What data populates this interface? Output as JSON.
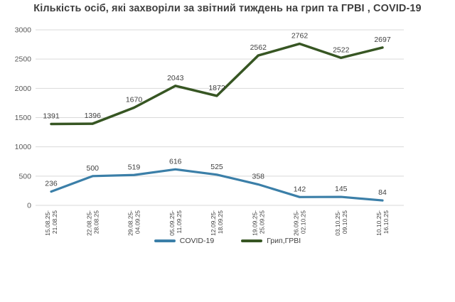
{
  "page": {
    "background": "#ffffff"
  },
  "chart_data": {
    "type": "line",
    "title": "Кількість осіб, які захворіли за звітний тиждень на  грип та ГРВІ , COVID-19",
    "categories": [
      "15.08.25-21.08.25",
      "22.08.25-28.08.25",
      "29.08.25-04.09.25",
      "05.09.25-11.09.25",
      "12.09.25-18.09.25",
      "19.09.25-25.09.25",
      "26.09.25-02.10.25",
      "03.10.25-09.10.25",
      "10.10.25-16.10.25"
    ],
    "series": [
      {
        "name": "COVID-19",
        "color": "#3b7fa8",
        "values": [
          236,
          500,
          519,
          616,
          525,
          358,
          142,
          145,
          84
        ]
      },
      {
        "name": "Грип,ГРВІ",
        "color": "#375623",
        "values": [
          1391,
          1396,
          1670,
          2043,
          1872,
          2562,
          2762,
          2522,
          2697
        ]
      }
    ],
    "xlabel": "",
    "ylabel": "",
    "ylim": [
      0,
      3000
    ],
    "yticks": [
      0,
      500,
      1000,
      1500,
      2000,
      2500,
      3000
    ],
    "grid": true,
    "legend_position": "bottom",
    "x_tick_rotation": 90,
    "data_labels": true
  },
  "colors": {
    "background": "#ffffff",
    "grid": "#d9d9d9",
    "axis_line": "#d9d9d9",
    "title_text": "#3f3f3f",
    "y_tick_text": "#595959",
    "x_tick_text": "#404040",
    "data_label_text": "#3f3f3f"
  }
}
